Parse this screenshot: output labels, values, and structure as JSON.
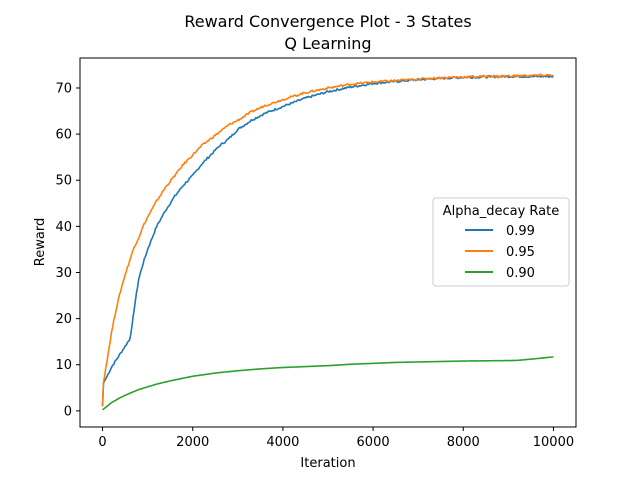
{
  "chart_data": {
    "type": "line",
    "title": "Reward Convergence Plot - 3 States",
    "subtitle": "Q Learning",
    "xlabel": "Iteration",
    "ylabel": "Reward",
    "xlim": [
      -500,
      10500
    ],
    "ylim": [
      -3.5,
      76.5
    ],
    "xticks": [
      0,
      2000,
      4000,
      6000,
      8000,
      10000
    ],
    "yticks": [
      0,
      10,
      20,
      30,
      40,
      50,
      60,
      70
    ],
    "grid": false,
    "legend": {
      "title": "Alpha_decay Rate",
      "placement": "center-right"
    },
    "series": [
      {
        "name": "0.99",
        "color": "#1f77b4",
        "x": [
          0,
          20,
          100,
          200,
          300,
          400,
          500,
          600,
          650,
          700,
          800,
          900,
          1000,
          1200,
          1400,
          1600,
          1800,
          2000,
          2200,
          2400,
          2600,
          2800,
          3000,
          3300,
          3600,
          4000,
          4500,
          5000,
          5500,
          6000,
          6500,
          7000,
          7500,
          8000,
          8500,
          9000,
          9500,
          10000
        ],
        "y": [
          1,
          6,
          7.5,
          9.5,
          11,
          12.5,
          14,
          15.5,
          18,
          22,
          28.5,
          32,
          35,
          40,
          43.5,
          46.5,
          49,
          51,
          53.5,
          55.5,
          57.5,
          59,
          61,
          63,
          64.5,
          66,
          67.8,
          69.2,
          70.2,
          71,
          71.4,
          71.8,
          72.1,
          72.3,
          72.4,
          72.5,
          72.5,
          72.5
        ]
      },
      {
        "name": "0.95",
        "color": "#ff7f0e",
        "x": [
          0,
          20,
          100,
          200,
          300,
          400,
          500,
          600,
          700,
          800,
          900,
          1000,
          1200,
          1400,
          1600,
          1800,
          2000,
          2200,
          2400,
          2600,
          2800,
          3000,
          3300,
          3600,
          4000,
          4500,
          5000,
          5500,
          6000,
          6500,
          7000,
          7500,
          8000,
          8500,
          9000,
          9500,
          10000
        ],
        "y": [
          1,
          6,
          11,
          17,
          22,
          26,
          29.5,
          32.5,
          35.5,
          37.5,
          40,
          42,
          45.5,
          48.5,
          51,
          53.5,
          55.5,
          57.5,
          59,
          60.5,
          62,
          63,
          64.8,
          66.2,
          67.5,
          69,
          70,
          70.8,
          71.3,
          71.6,
          71.9,
          72.2,
          72.4,
          72.5,
          72.6,
          72.7,
          72.8
        ]
      },
      {
        "name": "0.90",
        "color": "#2ca02c",
        "x": [
          0,
          100,
          200,
          400,
          600,
          800,
          1000,
          1200,
          1500,
          1800,
          2000,
          2500,
          3000,
          3500,
          4000,
          4500,
          5000,
          5500,
          6000,
          6500,
          7000,
          7500,
          8000,
          8500,
          9000,
          9200,
          9500,
          10000
        ],
        "y": [
          0.2,
          1,
          1.8,
          2.9,
          3.8,
          4.6,
          5.2,
          5.8,
          6.5,
          7.1,
          7.5,
          8.2,
          8.7,
          9.1,
          9.4,
          9.6,
          9.8,
          10.1,
          10.3,
          10.5,
          10.6,
          10.7,
          10.8,
          10.85,
          10.9,
          10.95,
          11.2,
          11.7
        ]
      }
    ]
  }
}
